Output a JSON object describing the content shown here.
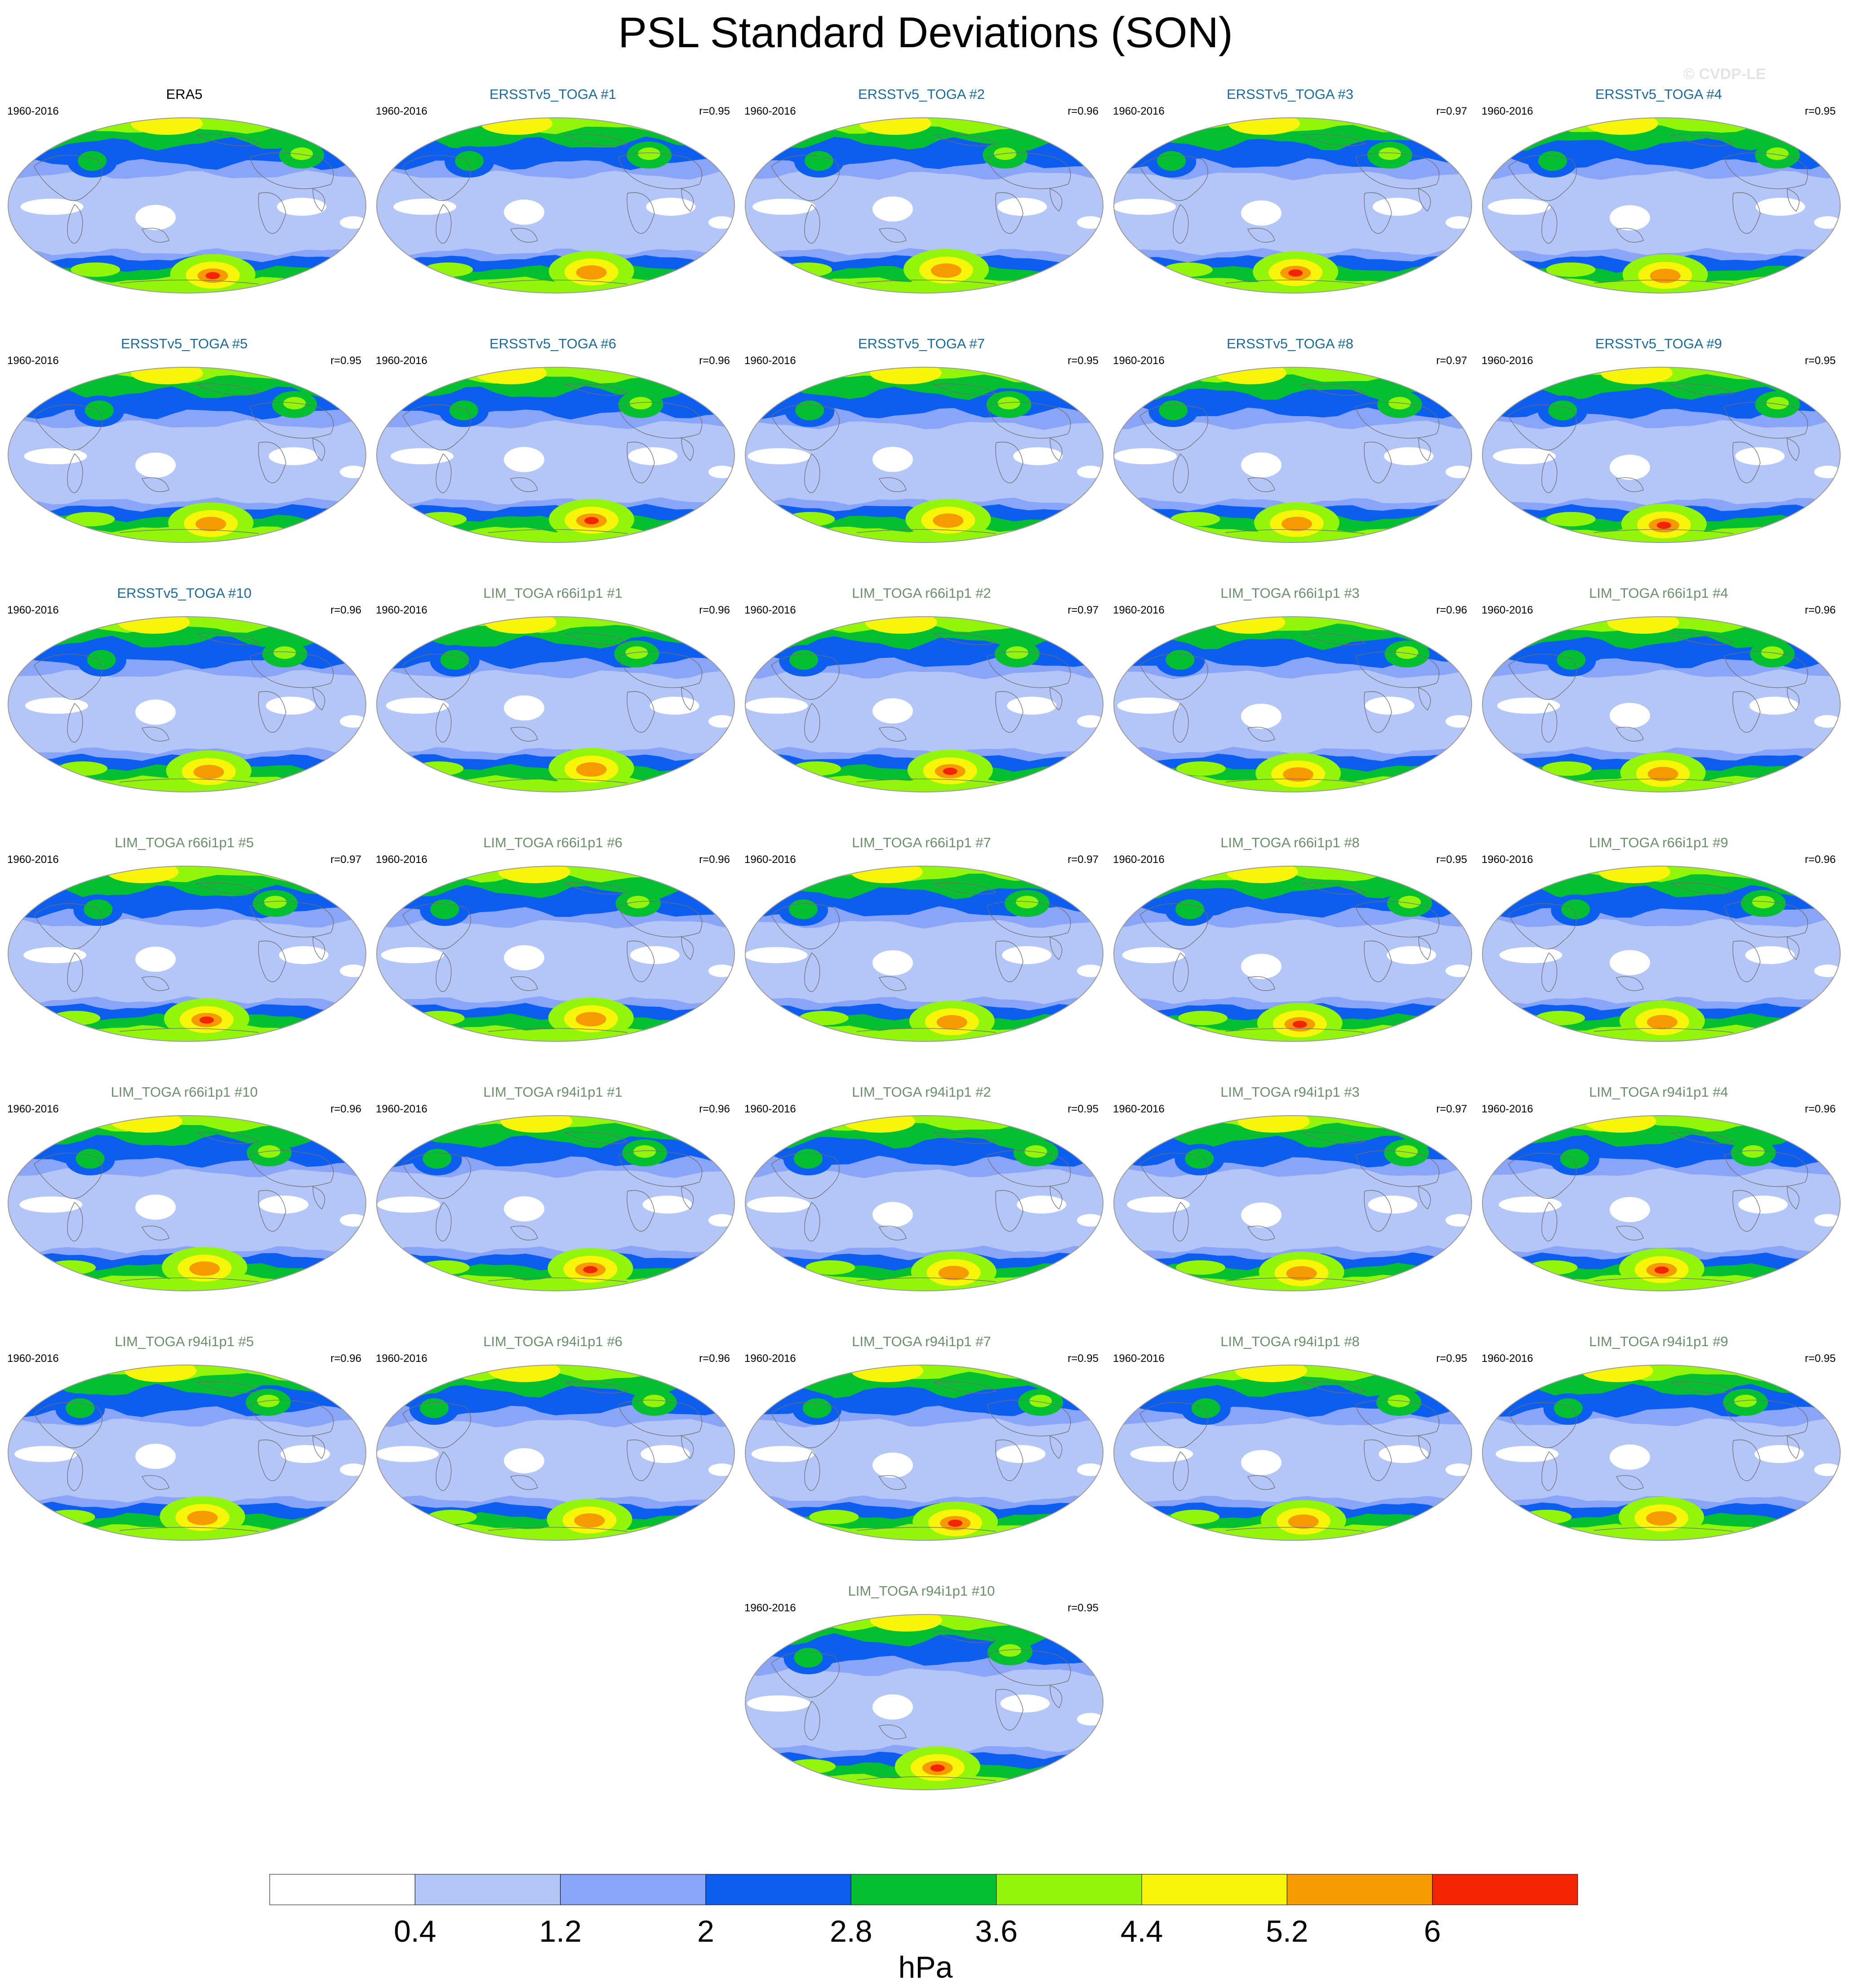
{
  "title": "PSL Standard Deviations (SON)",
  "copyright": "© CVDP-LE",
  "colors": {
    "observed_title": "#000000",
    "ersst_title": "#1a6a9a",
    "lim_title": "#6b8f6b",
    "levels": [
      "#ffffff",
      "#b4c6f7",
      "#8aa4f7",
      "#0c5ef0",
      "#04bf30",
      "#92f50a",
      "#f7f50a",
      "#f79a02",
      "#f22402"
    ]
  },
  "panels": [
    {
      "title": "ERA5",
      "years": "1960-2016",
      "r": "",
      "group": "observed"
    },
    {
      "title": "ERSSTv5_TOGA #1",
      "years": "1960-2016",
      "r": "r=0.95",
      "group": "ersst"
    },
    {
      "title": "ERSSTv5_TOGA #2",
      "years": "1960-2016",
      "r": "r=0.96",
      "group": "ersst"
    },
    {
      "title": "ERSSTv5_TOGA #3",
      "years": "1960-2016",
      "r": "r=0.97",
      "group": "ersst"
    },
    {
      "title": "ERSSTv5_TOGA #4",
      "years": "1960-2016",
      "r": "r=0.95",
      "group": "ersst"
    },
    {
      "title": "ERSSTv5_TOGA #5",
      "years": "1960-2016",
      "r": "r=0.95",
      "group": "ersst"
    },
    {
      "title": "ERSSTv5_TOGA #6",
      "years": "1960-2016",
      "r": "r=0.96",
      "group": "ersst"
    },
    {
      "title": "ERSSTv5_TOGA #7",
      "years": "1960-2016",
      "r": "r=0.95",
      "group": "ersst"
    },
    {
      "title": "ERSSTv5_TOGA #8",
      "years": "1960-2016",
      "r": "r=0.97",
      "group": "ersst"
    },
    {
      "title": "ERSSTv5_TOGA #9",
      "years": "1960-2016",
      "r": "r=0.95",
      "group": "ersst"
    },
    {
      "title": "ERSSTv5_TOGA #10",
      "years": "1960-2016",
      "r": "r=0.96",
      "group": "ersst"
    },
    {
      "title": "LIM_TOGA r66i1p1 #1",
      "years": "1960-2016",
      "r": "r=0.96",
      "group": "lim"
    },
    {
      "title": "LIM_TOGA r66i1p1 #2",
      "years": "1960-2016",
      "r": "r=0.97",
      "group": "lim"
    },
    {
      "title": "LIM_TOGA r66i1p1 #3",
      "years": "1960-2016",
      "r": "r=0.96",
      "group": "lim"
    },
    {
      "title": "LIM_TOGA r66i1p1 #4",
      "years": "1960-2016",
      "r": "r=0.96",
      "group": "lim"
    },
    {
      "title": "LIM_TOGA r66i1p1 #5",
      "years": "1960-2016",
      "r": "r=0.97",
      "group": "lim"
    },
    {
      "title": "LIM_TOGA r66i1p1 #6",
      "years": "1960-2016",
      "r": "r=0.96",
      "group": "lim"
    },
    {
      "title": "LIM_TOGA r66i1p1 #7",
      "years": "1960-2016",
      "r": "r=0.97",
      "group": "lim"
    },
    {
      "title": "LIM_TOGA r66i1p1 #8",
      "years": "1960-2016",
      "r": "r=0.95",
      "group": "lim"
    },
    {
      "title": "LIM_TOGA r66i1p1 #9",
      "years": "1960-2016",
      "r": "r=0.96",
      "group": "lim"
    },
    {
      "title": "LIM_TOGA r66i1p1 #10",
      "years": "1960-2016",
      "r": "r=0.96",
      "group": "lim"
    },
    {
      "title": "LIM_TOGA r94i1p1 #1",
      "years": "1960-2016",
      "r": "r=0.96",
      "group": "lim"
    },
    {
      "title": "LIM_TOGA r94i1p1 #2",
      "years": "1960-2016",
      "r": "r=0.95",
      "group": "lim"
    },
    {
      "title": "LIM_TOGA r94i1p1 #3",
      "years": "1960-2016",
      "r": "r=0.97",
      "group": "lim"
    },
    {
      "title": "LIM_TOGA r94i1p1 #4",
      "years": "1960-2016",
      "r": "r=0.96",
      "group": "lim"
    },
    {
      "title": "LIM_TOGA r94i1p1 #5",
      "years": "1960-2016",
      "r": "r=0.96",
      "group": "lim"
    },
    {
      "title": "LIM_TOGA r94i1p1 #6",
      "years": "1960-2016",
      "r": "r=0.96",
      "group": "lim"
    },
    {
      "title": "LIM_TOGA r94i1p1 #7",
      "years": "1960-2016",
      "r": "r=0.95",
      "group": "lim"
    },
    {
      "title": "LIM_TOGA r94i1p1 #8",
      "years": "1960-2016",
      "r": "r=0.95",
      "group": "lim"
    },
    {
      "title": "LIM_TOGA r94i1p1 #9",
      "years": "1960-2016",
      "r": "r=0.95",
      "group": "lim"
    },
    {
      "title": "LIM_TOGA r94i1p1 #10",
      "years": "1960-2016",
      "r": "r=0.95",
      "group": "lim"
    }
  ],
  "colorbar": {
    "labels": [
      "0.4",
      "1.2",
      "2",
      "2.8",
      "3.6",
      "4.4",
      "5.2",
      "6"
    ],
    "units": "hPa"
  },
  "chart_data": {
    "type": "heatmap",
    "title": "PSL Standard Deviations (SON)",
    "season": "SON",
    "period": "1960-2016",
    "units": "hPa",
    "levels": [
      0.4,
      1.2,
      2,
      2.8,
      3.6,
      4.4,
      5.2,
      6
    ],
    "panel_count": 31,
    "pattern_correlations": {
      "ERA5": null,
      "ERSSTv5_TOGA #1": 0.95,
      "ERSSTv5_TOGA #2": 0.96,
      "ERSSTv5_TOGA #3": 0.97,
      "ERSSTv5_TOGA #4": 0.95,
      "ERSSTv5_TOGA #5": 0.95,
      "ERSSTv5_TOGA #6": 0.96,
      "ERSSTv5_TOGA #7": 0.95,
      "ERSSTv5_TOGA #8": 0.97,
      "ERSSTv5_TOGA #9": 0.95,
      "ERSSTv5_TOGA #10": 0.96,
      "LIM_TOGA r66i1p1 #1": 0.96,
      "LIM_TOGA r66i1p1 #2": 0.97,
      "LIM_TOGA r66i1p1 #3": 0.96,
      "LIM_TOGA r66i1p1 #4": 0.96,
      "LIM_TOGA r66i1p1 #5": 0.97,
      "LIM_TOGA r66i1p1 #6": 0.96,
      "LIM_TOGA r66i1p1 #7": 0.97,
      "LIM_TOGA r66i1p1 #8": 0.95,
      "LIM_TOGA r66i1p1 #9": 0.96,
      "LIM_TOGA r66i1p1 #10": 0.96,
      "LIM_TOGA r94i1p1 #1": 0.96,
      "LIM_TOGA r94i1p1 #2": 0.95,
      "LIM_TOGA r94i1p1 #3": 0.97,
      "LIM_TOGA r94i1p1 #4": 0.96,
      "LIM_TOGA r94i1p1 #5": 0.96,
      "LIM_TOGA r94i1p1 #6": 0.96,
      "LIM_TOGA r94i1p1 #7": 0.95,
      "LIM_TOGA r94i1p1 #8": 0.95,
      "LIM_TOGA r94i1p1 #9": 0.95,
      "LIM_TOGA r94i1p1 #10": 0.95
    }
  }
}
